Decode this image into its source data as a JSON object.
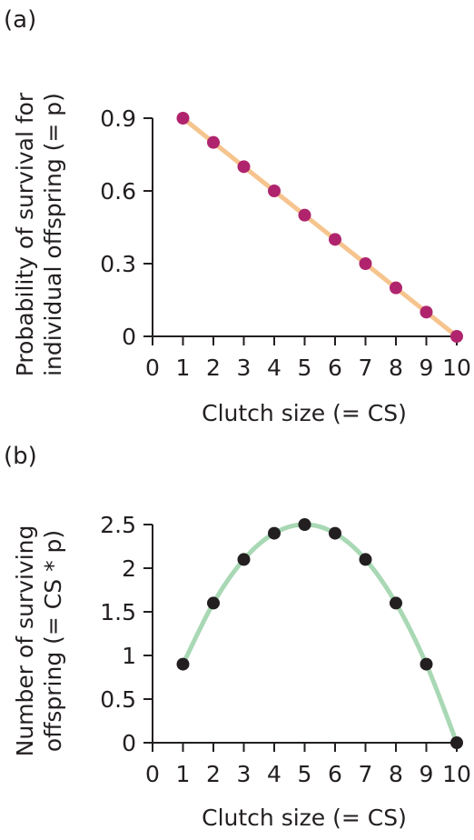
{
  "chart_data": [
    {
      "panel_label": "(a)",
      "type": "line",
      "xlabel": "Clutch size (= CS)",
      "ylabel": [
        "Probability of survival for",
        "individual offspring (= p)"
      ],
      "xlim": [
        0,
        10
      ],
      "ylim": [
        0,
        0.9
      ],
      "x_ticks": [
        "0",
        "1",
        "2",
        "3",
        "4",
        "5",
        "6",
        "7",
        "8",
        "9",
        "10"
      ],
      "y_ticks": [
        "0",
        "0.3",
        "0.6",
        "0.9"
      ],
      "y_tick_values": [
        0,
        0.3,
        0.6,
        0.9
      ],
      "grid": false,
      "series": [
        {
          "x": [
            1,
            2,
            3,
            4,
            5,
            6,
            7,
            8,
            9,
            10
          ],
          "y": [
            0.9,
            0.8,
            0.7,
            0.6,
            0.5,
            0.4,
            0.3,
            0.2,
            0.1,
            0
          ],
          "line_color": "#f6c48e",
          "marker_color": "#b0246e"
        }
      ]
    },
    {
      "panel_label": "(b)",
      "type": "line",
      "xlabel": "Clutch size (= CS)",
      "ylabel": [
        "Number of surviving",
        "offspring (= CS * p)"
      ],
      "xlim": [
        0,
        10
      ],
      "ylim": [
        0,
        2.5
      ],
      "x_ticks": [
        "0",
        "1",
        "2",
        "3",
        "4",
        "5",
        "6",
        "7",
        "8",
        "9",
        "10"
      ],
      "y_ticks": [
        "0",
        "0.5",
        "1",
        "1.5",
        "2",
        "2.5"
      ],
      "y_tick_values": [
        0,
        0.5,
        1,
        1.5,
        2,
        2.5
      ],
      "grid": false,
      "series": [
        {
          "x": [
            1,
            2,
            3,
            4,
            5,
            6,
            7,
            8,
            9,
            10
          ],
          "y": [
            0.9,
            1.6,
            2.1,
            2.4,
            2.5,
            2.4,
            2.1,
            1.6,
            0.9,
            0
          ],
          "line_color": "#a8d8b4",
          "marker_color": "#231f20"
        }
      ]
    }
  ]
}
